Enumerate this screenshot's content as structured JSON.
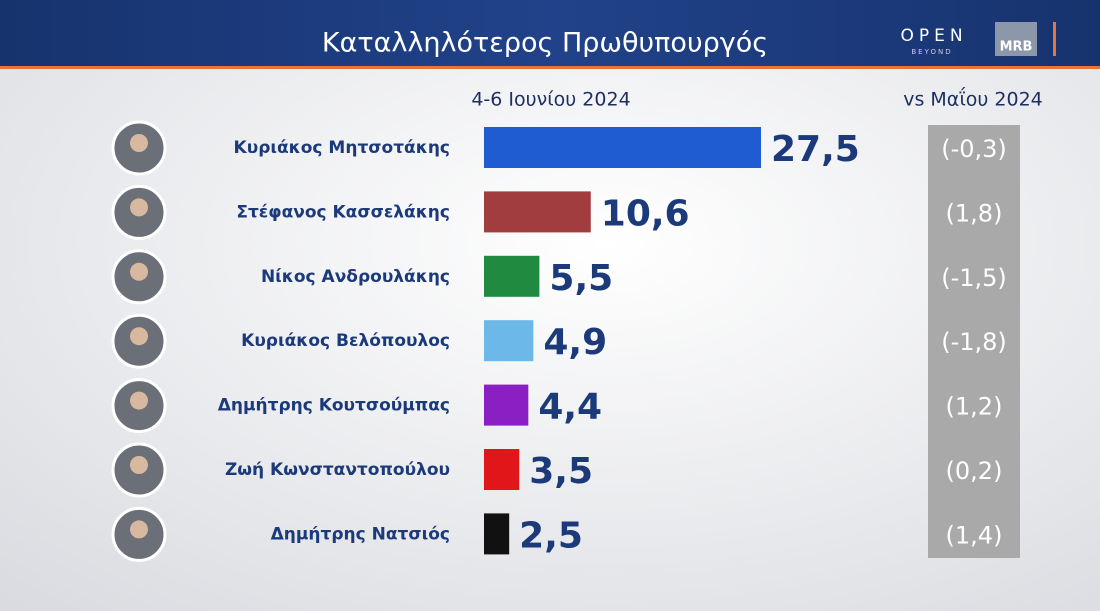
{
  "branding": {
    "open": "OPEN",
    "beyond": "BEYOND",
    "mrb": "MRB"
  },
  "chart_data": {
    "type": "hbar",
    "title": "Καταλληλότερος Πρωθυπουργός",
    "categories": [
      "Κυριάκος Μητσοτάκης",
      "Στέφανος Κασσελάκης",
      "Νίκος Ανδρουλάκης",
      "Κυριάκος Βελόπουλος",
      "Δημήτρης Κουτσούμπας",
      "Ζωή Κωνσταντοπούλου",
      "Δημήτρης Νατσιός"
    ],
    "series": [
      {
        "name": "4-6 Ιουνίου 2024",
        "colors": [
          "#1f5bd1",
          "#a23d3f",
          "#1f8a40",
          "#6cb8e8",
          "#8a1fc4",
          "#e0161b",
          "#111111"
        ],
        "values": [
          27.5,
          10.6,
          5.5,
          4.9,
          4.4,
          3.5,
          2.5
        ],
        "value_labels": [
          "27,5",
          "10,6",
          "5,5",
          "4,9",
          "4,4",
          "3,5",
          "2,5"
        ]
      },
      {
        "name": "vs Μαΐου 2024",
        "values": [
          -0.3,
          1.8,
          -1.5,
          -1.8,
          1.2,
          0.2,
          1.4
        ],
        "value_labels": [
          "(-0,3)",
          "(1,8)",
          "(-1,5)",
          "(-1,8)",
          "(1,2)",
          "(0,2)",
          "(1,4)"
        ]
      }
    ]
  }
}
